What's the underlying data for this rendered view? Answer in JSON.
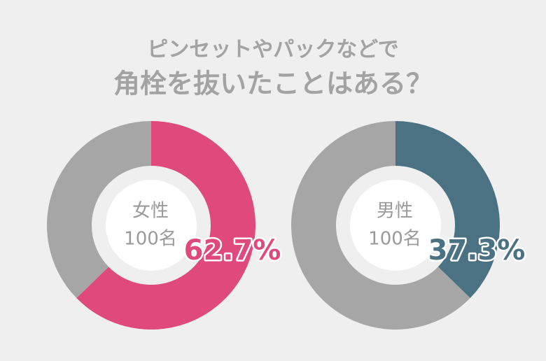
{
  "title": [
    "ピンセットやパックなどで",
    "角栓を抜いたことはある？"
  ],
  "chart_data": [
    {
      "type": "donut",
      "center_label": [
        "女性",
        "100名"
      ],
      "values": [
        62.7,
        37.3
      ],
      "value_labels": [
        "62.7%",
        null
      ],
      "colors": [
        "#e0497b",
        "#a6a6a6"
      ]
    },
    {
      "type": "donut",
      "center_label": [
        "男性",
        "100名"
      ],
      "values": [
        37.3,
        62.7
      ],
      "value_labels": [
        "37.3%",
        null
      ],
      "colors": [
        "#4a7282",
        "#a6a6a6"
      ]
    }
  ]
}
